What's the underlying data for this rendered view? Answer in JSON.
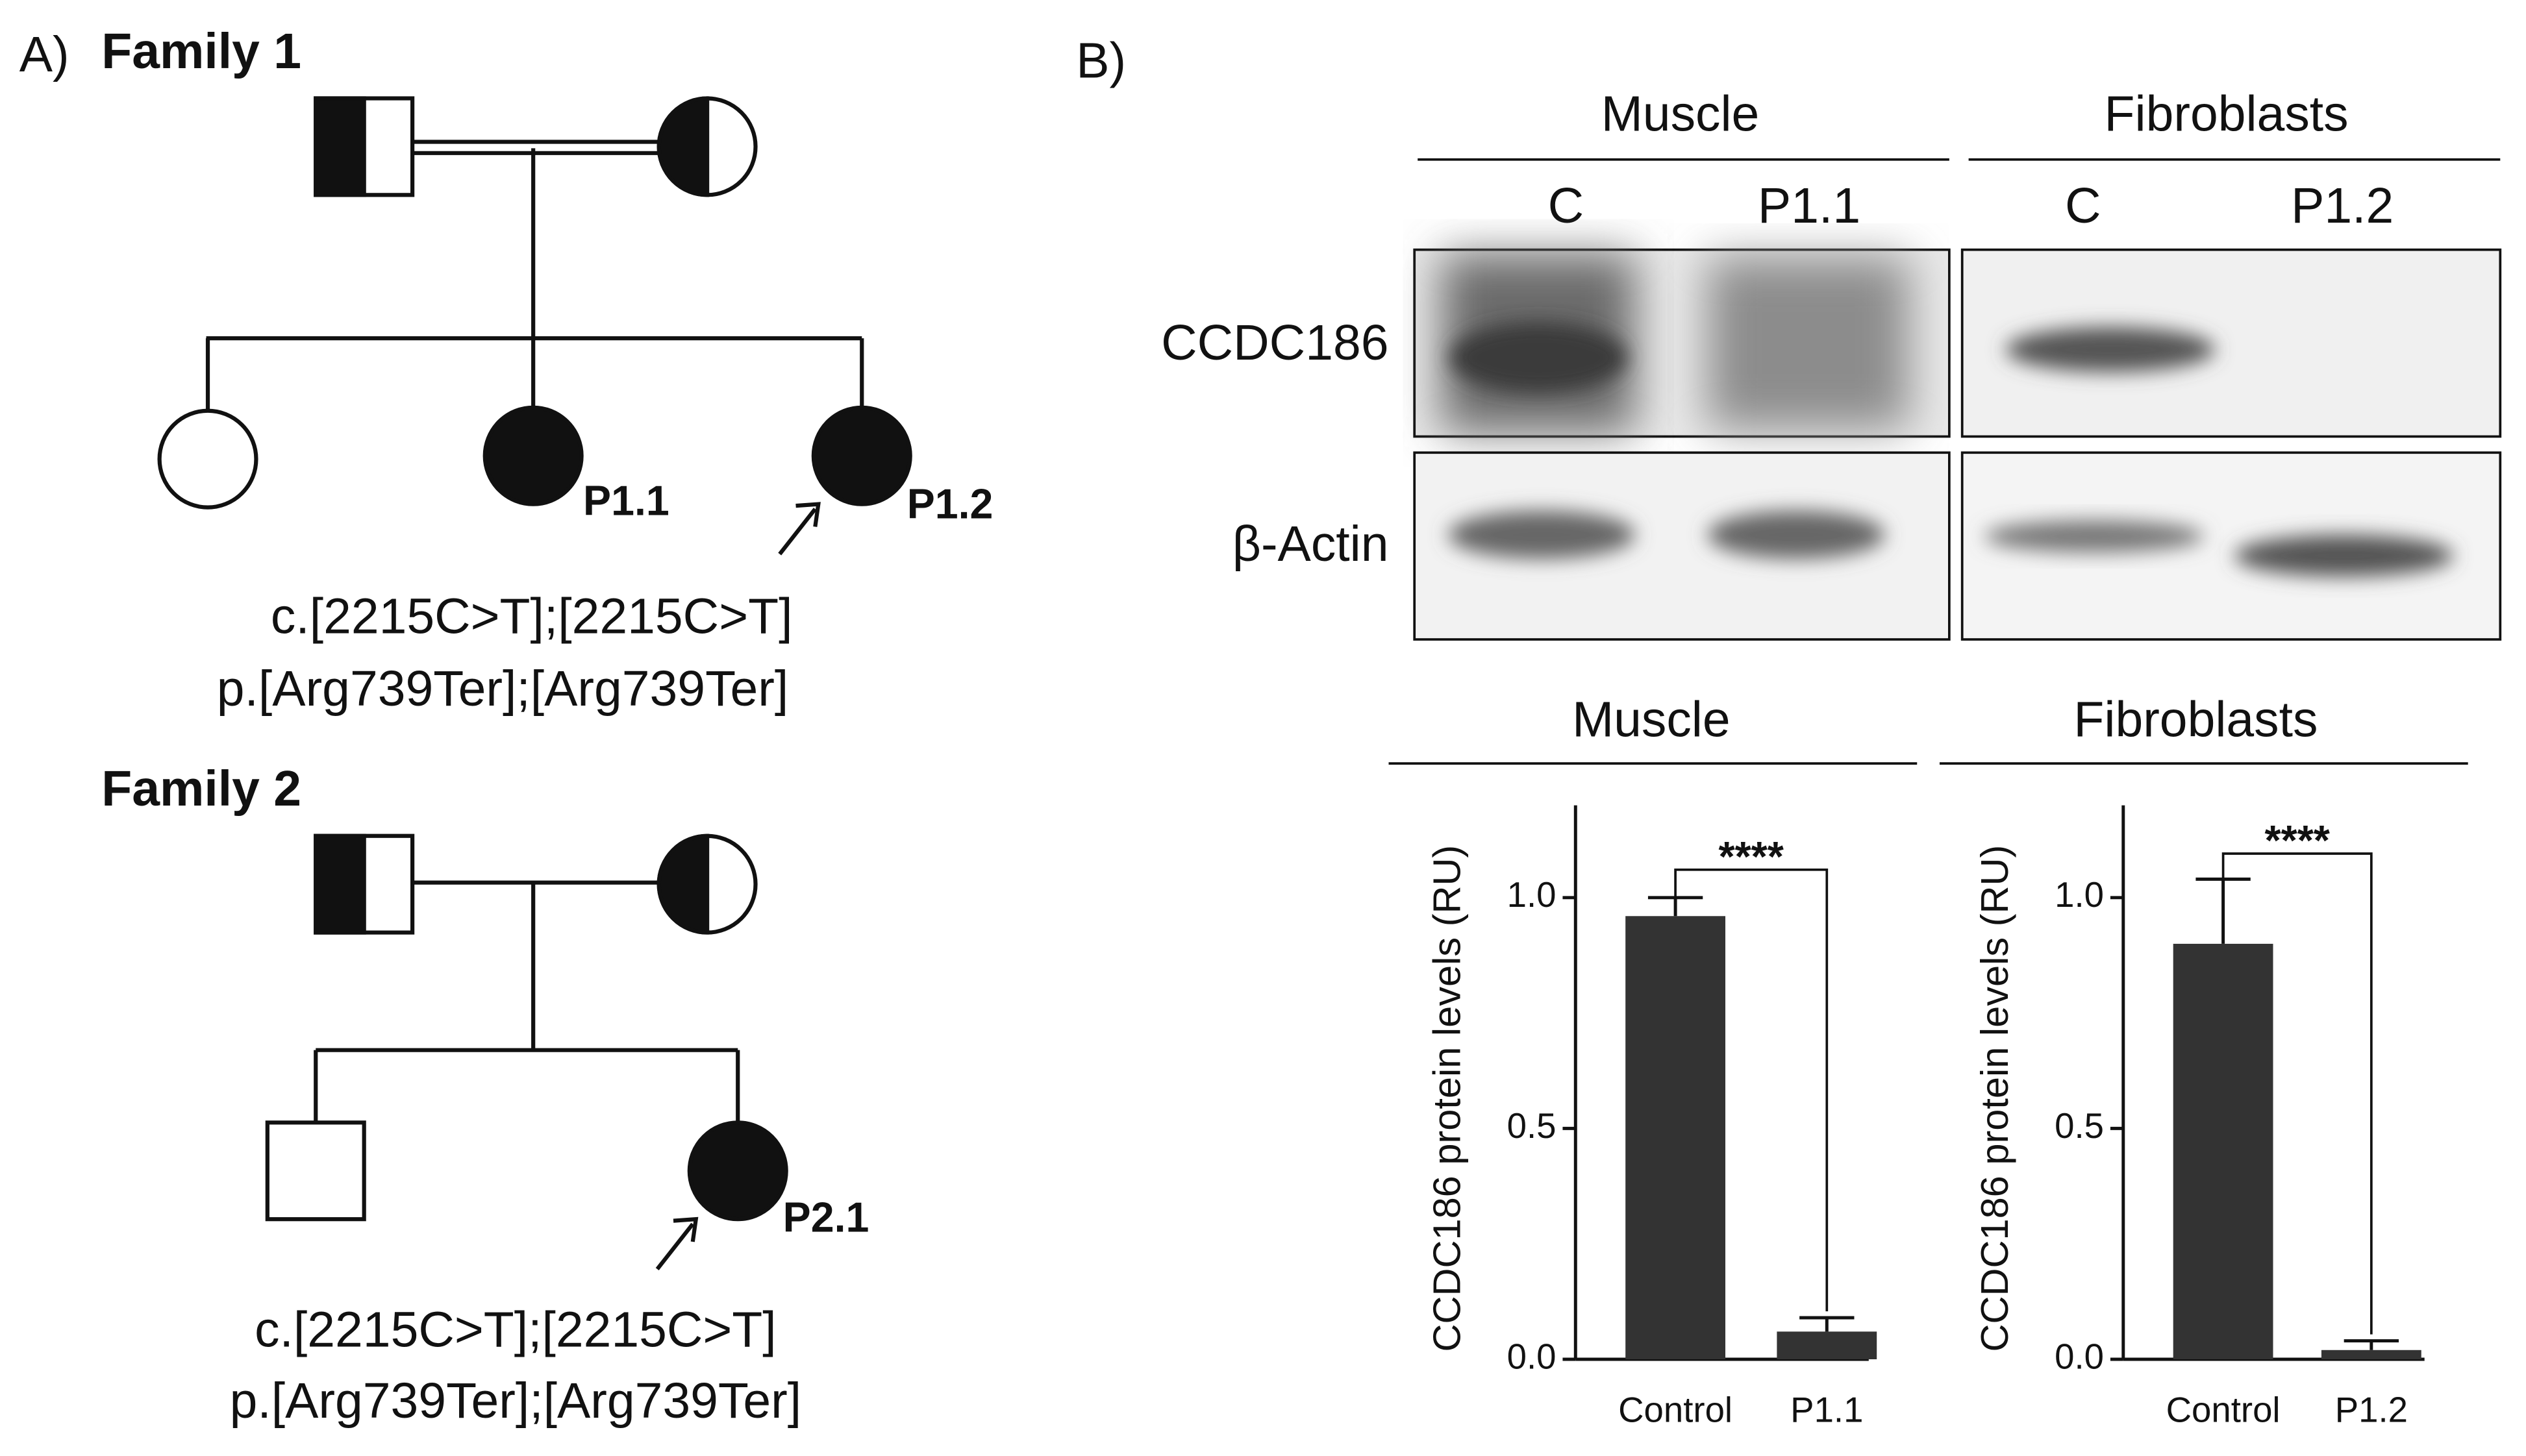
{
  "panel_a": {
    "label": "A)",
    "families": [
      {
        "title": "Family 1",
        "affected_labels": [
          "P1.1",
          "P1.2"
        ],
        "variant": [
          "c.[2215C>T];[2215C>T]",
          "p.[Arg739Ter];[Arg739Ter]"
        ]
      },
      {
        "title": "Family 2",
        "affected_labels": [
          "P2.1"
        ],
        "variant": [
          "c.[2215C>T];[2215C>T]",
          "p.[Arg739Ter];[Arg739Ter]"
        ]
      }
    ]
  },
  "panel_b": {
    "label": "B)",
    "blot": {
      "tissues": [
        "Muscle",
        "Fibroblasts"
      ],
      "lanes": [
        "C",
        "P1.1",
        "C",
        "P1.2"
      ],
      "proteins": [
        "CCDC186",
        "β-Actin"
      ]
    }
  },
  "chart_data": [
    {
      "type": "bar",
      "title": "Muscle",
      "y_label": "CCDC186 protein levels (RU)",
      "categories": [
        "Control",
        "P1.1"
      ],
      "values": [
        0.96,
        0.06
      ],
      "errors": [
        0.04,
        0.03
      ],
      "color": "#333333",
      "ylim": [
        0,
        1.2
      ],
      "yticks": [
        {
          "value": 0,
          "label": "0.0"
        },
        0.5,
        {
          "value": 1,
          "label": "1.0"
        }
      ],
      "annotation": "****"
    },
    {
      "type": "bar",
      "title": "Fibroblasts",
      "y_label": "CCDC186 protein levels (RU)",
      "categories": [
        "Control",
        "P1.2"
      ],
      "values": [
        0.9,
        0.02
      ],
      "errors": [
        0.14,
        0.02
      ],
      "color": "#333333",
      "ylim": [
        0,
        1.2
      ],
      "yticks": [
        {
          "value": 0,
          "label": "0.0"
        },
        0.5,
        {
          "value": 1,
          "label": "1.0"
        }
      ],
      "annotation": "****"
    }
  ]
}
